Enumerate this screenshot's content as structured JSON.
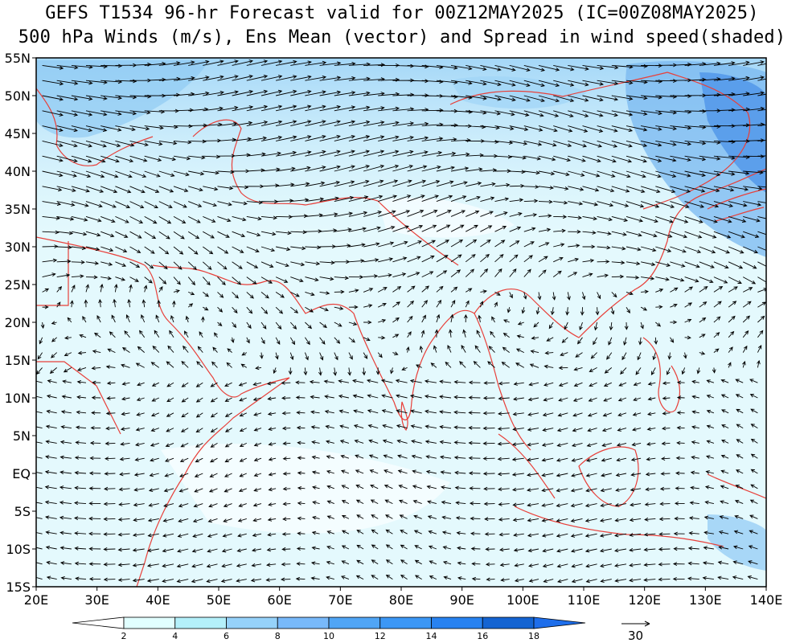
{
  "title": {
    "line1": "GEFS T1534 96-hr Forecast valid for 00Z12MAY2025 (IC=00Z08MAY2025)",
    "line2": "500 hPa Winds (m/s), Ens Mean (vector) and Spread in wind speed(shaded)"
  },
  "map": {
    "lat_labels": [
      "55N",
      "50N",
      "45N",
      "40N",
      "35N",
      "30N",
      "25N",
      "20N",
      "15N",
      "10N",
      "5N",
      "EQ",
      "5S",
      "10S",
      "15S"
    ],
    "lat_values": [
      55,
      50,
      45,
      40,
      35,
      30,
      25,
      20,
      15,
      10,
      5,
      0,
      -5,
      -10,
      -15
    ],
    "lon_labels": [
      "20E",
      "30E",
      "40E",
      "50E",
      "60E",
      "70E",
      "80E",
      "90E",
      "100E",
      "110E",
      "120E",
      "130E",
      "140E"
    ],
    "lon_values": [
      20,
      30,
      40,
      50,
      60,
      70,
      80,
      90,
      100,
      110,
      120,
      130,
      140
    ],
    "lon_range": [
      20,
      140
    ],
    "lat_range": [
      -15,
      55
    ],
    "coastline_color": "#e8403a",
    "arrow_color": "#000000"
  },
  "colorbar": {
    "tick_labels": [
      "2",
      "4",
      "6",
      "8",
      "10",
      "12",
      "14",
      "16",
      "18"
    ],
    "colors": [
      "#ffffff",
      "#e1ffff",
      "#b4f0fa",
      "#96d2fa",
      "#78b9fa",
      "#50a5f5",
      "#3c97f5",
      "#2882f0",
      "#1464d2",
      "#1e6eeb"
    ]
  },
  "reference_vector": {
    "label": "30"
  }
}
